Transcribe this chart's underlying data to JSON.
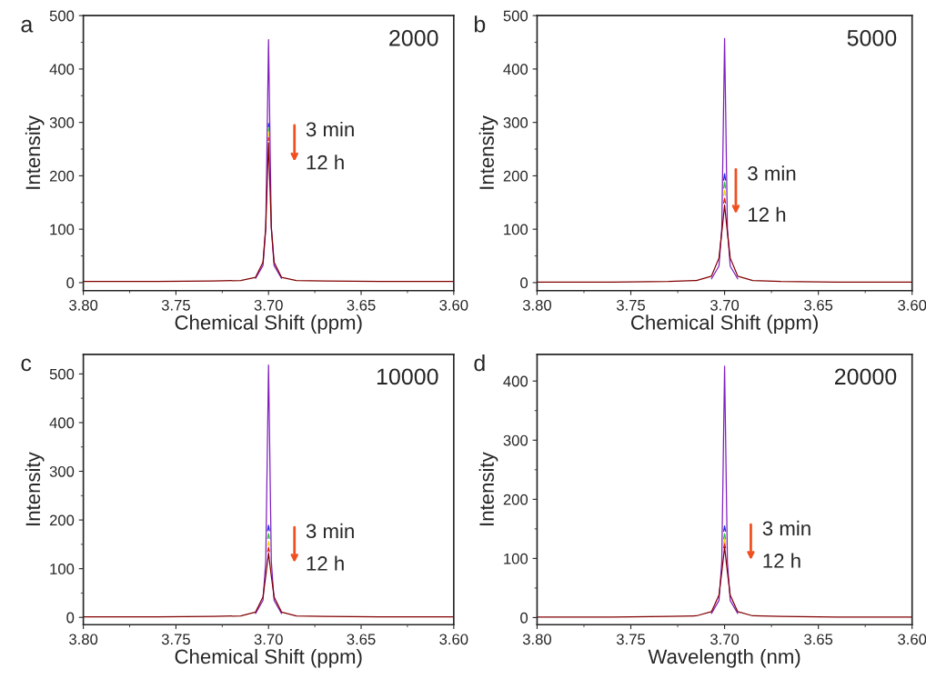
{
  "chart_data": [
    {
      "type": "line",
      "xlabel": "Chemical Shift (ppm)",
      "ylabel": "Intensity",
      "annotations": [
        "a",
        "2000",
        "3 min",
        "12 h"
      ],
      "xlim": [
        3.8,
        3.6
      ],
      "xticks": [
        {
          "value": 3.8,
          "label": "3.80"
        },
        {
          "value": 3.75,
          "label": "3.75"
        },
        {
          "value": 3.7,
          "label": "3.70"
        },
        {
          "value": 3.65,
          "label": "3.65"
        },
        {
          "value": 3.6,
          "label": "3.60"
        }
      ],
      "ylim": [
        -15,
        500
      ],
      "yticks": [
        0,
        100,
        200,
        300,
        400,
        500
      ],
      "grid": false,
      "legend": false,
      "marker": "none",
      "line_style": "solid",
      "x": [
        3.8,
        3.76,
        3.73,
        3.715,
        3.707,
        3.703,
        3.7015,
        3.7,
        3.6985,
        3.697,
        3.693,
        3.685,
        3.67,
        3.64,
        3.6
      ],
      "series": [
        {
          "color": "#7f1fbf",
          "values": [
            null,
            null,
            null,
            null,
            8,
            32,
            102,
            455,
            102,
            32,
            8,
            null,
            null,
            null,
            null
          ]
        },
        {
          "color": "#2030e0",
          "x": [
            3.7001,
            3.7,
            3.6999
          ],
          "values": [
            292,
            298,
            292
          ]
        },
        {
          "color": "#30c040",
          "x": [
            3.7001,
            3.7,
            3.6999
          ],
          "values": [
            284,
            290,
            284
          ]
        },
        {
          "color": "#e8d800",
          "x": [
            3.7001,
            3.7,
            3.6999
          ],
          "values": [
            275,
            282,
            275
          ]
        },
        {
          "color": "#e02000",
          "x": [
            3.7001,
            3.7,
            3.6999
          ],
          "values": [
            266,
            272,
            266
          ]
        },
        {
          "color": "#800000",
          "values": [
            2,
            2,
            3,
            4,
            10,
            38,
            104,
            262,
            104,
            38,
            10,
            4,
            3,
            2,
            2
          ]
        }
      ]
    },
    {
      "type": "line",
      "xlabel": "Chemical Shift (ppm)",
      "ylabel": "Intensity",
      "annotations": [
        "b",
        "5000",
        "3 min",
        "12 h"
      ],
      "xlim": [
        3.8,
        3.6
      ],
      "xticks": [
        {
          "value": 3.8,
          "label": "3.80"
        },
        {
          "value": 3.75,
          "label": "3.75"
        },
        {
          "value": 3.7,
          "label": "3.70"
        },
        {
          "value": 3.65,
          "label": "3.65"
        },
        {
          "value": 3.6,
          "label": "3.60"
        }
      ],
      "ylim": [
        -15,
        500
      ],
      "yticks": [
        0,
        100,
        200,
        300,
        400,
        500
      ],
      "grid": false,
      "legend": false,
      "marker": "none",
      "line_style": "solid",
      "x": [
        3.8,
        3.76,
        3.73,
        3.715,
        3.707,
        3.703,
        3.7015,
        3.7,
        3.6985,
        3.697,
        3.693,
        3.685,
        3.67,
        3.64,
        3.6
      ],
      "series": [
        {
          "color": "#7f1fbf",
          "values": [
            null,
            null,
            null,
            null,
            7,
            31,
            101,
            457,
            101,
            31,
            7,
            null,
            null,
            null,
            null
          ]
        },
        {
          "color": "#2030e0",
          "x": [
            3.7005,
            3.7,
            3.6995
          ],
          "values": [
            192,
            204,
            192
          ]
        },
        {
          "color": "#30c040",
          "x": [
            3.7005,
            3.7,
            3.6995
          ],
          "values": [
            177,
            188,
            177
          ]
        },
        {
          "color": "#e8d800",
          "x": [
            3.7005,
            3.7,
            3.6995
          ],
          "values": [
            163,
            173,
            163
          ]
        },
        {
          "color": "#e02000",
          "x": [
            3.7005,
            3.7,
            3.6995
          ],
          "values": [
            149,
            158,
            149
          ]
        },
        {
          "color": "#800000",
          "values": [
            1,
            1,
            2,
            4,
            12,
            46,
            94,
            145,
            94,
            46,
            12,
            4,
            2,
            1,
            1
          ]
        }
      ]
    },
    {
      "type": "line",
      "xlabel": "Chemical Shift (ppm)",
      "ylabel": "Intensity",
      "annotations": [
        "c",
        "10000",
        "3 min",
        "12 h"
      ],
      "xlim": [
        3.8,
        3.6
      ],
      "xticks": [
        {
          "value": 3.8,
          "label": "3.80"
        },
        {
          "value": 3.75,
          "label": "3.75"
        },
        {
          "value": 3.7,
          "label": "3.70"
        },
        {
          "value": 3.65,
          "label": "3.65"
        },
        {
          "value": 3.6,
          "label": "3.60"
        }
      ],
      "ylim": [
        -15,
        540
      ],
      "yticks": [
        0,
        100,
        200,
        300,
        400,
        500
      ],
      "grid": false,
      "legend": false,
      "marker": "none",
      "line_style": "solid",
      "x": [
        3.8,
        3.76,
        3.73,
        3.715,
        3.707,
        3.703,
        3.7015,
        3.7,
        3.6985,
        3.697,
        3.693,
        3.685,
        3.67,
        3.64,
        3.6
      ],
      "series": [
        {
          "color": "#7f1fbf",
          "values": [
            null,
            null,
            null,
            null,
            8,
            35,
            115,
            518,
            115,
            35,
            8,
            null,
            null,
            null,
            null
          ]
        },
        {
          "color": "#2030e0",
          "x": [
            3.7005,
            3.7,
            3.6995
          ],
          "values": [
            178,
            189,
            178
          ]
        },
        {
          "color": "#30c040",
          "x": [
            3.7005,
            3.7,
            3.6995
          ],
          "values": [
            162,
            172,
            162
          ]
        },
        {
          "color": "#e8d800",
          "x": [
            3.7005,
            3.7,
            3.6995
          ],
          "values": [
            147,
            156,
            147
          ]
        },
        {
          "color": "#e02000",
          "x": [
            3.7005,
            3.7,
            3.6995
          ],
          "values": [
            135,
            144,
            135
          ]
        },
        {
          "color": "#800000",
          "values": [
            1,
            1,
            2,
            3,
            11,
            42,
            85,
            132,
            85,
            42,
            11,
            3,
            2,
            1,
            1
          ]
        }
      ]
    },
    {
      "type": "line",
      "xlabel": "Wavelength (nm)",
      "ylabel": "Intensity",
      "annotations": [
        "d",
        "20000",
        "3 min",
        "12 h"
      ],
      "xlim": [
        3.8,
        3.6
      ],
      "xticks": [
        {
          "value": 3.8,
          "label": "3.80"
        },
        {
          "value": 3.75,
          "label": "3.75"
        },
        {
          "value": 3.7,
          "label": "3.70"
        },
        {
          "value": 3.65,
          "label": "3.65"
        },
        {
          "value": 3.6,
          "label": "3.60"
        }
      ],
      "ylim": [
        -12,
        445
      ],
      "yticks": [
        0,
        100,
        200,
        300,
        400
      ],
      "grid": false,
      "legend": false,
      "marker": "none",
      "line_style": "solid",
      "x": [
        3.8,
        3.76,
        3.73,
        3.715,
        3.707,
        3.703,
        3.7015,
        3.7,
        3.6985,
        3.697,
        3.693,
        3.685,
        3.67,
        3.64,
        3.6
      ],
      "series": [
        {
          "color": "#7f1fbf",
          "values": [
            null,
            null,
            null,
            null,
            7,
            29,
            94,
            425,
            94,
            29,
            7,
            null,
            null,
            null,
            null
          ]
        },
        {
          "color": "#2030e0",
          "x": [
            3.7005,
            3.7,
            3.6995
          ],
          "values": [
            146,
            155,
            146
          ]
        },
        {
          "color": "#30c040",
          "x": [
            3.7005,
            3.7,
            3.6995
          ],
          "values": [
            133,
            142,
            133
          ]
        },
        {
          "color": "#e8d800",
          "x": [
            3.7005,
            3.7,
            3.6995
          ],
          "values": [
            125,
            133,
            125
          ]
        },
        {
          "color": "#e02000",
          "x": [
            3.7005,
            3.7,
            3.6995
          ],
          "values": [
            118,
            125,
            118
          ]
        },
        {
          "color": "#800000",
          "values": [
            1,
            1,
            2,
            3,
            10,
            38,
            77,
            119,
            77,
            38,
            10,
            3,
            2,
            1,
            1
          ]
        }
      ]
    }
  ]
}
